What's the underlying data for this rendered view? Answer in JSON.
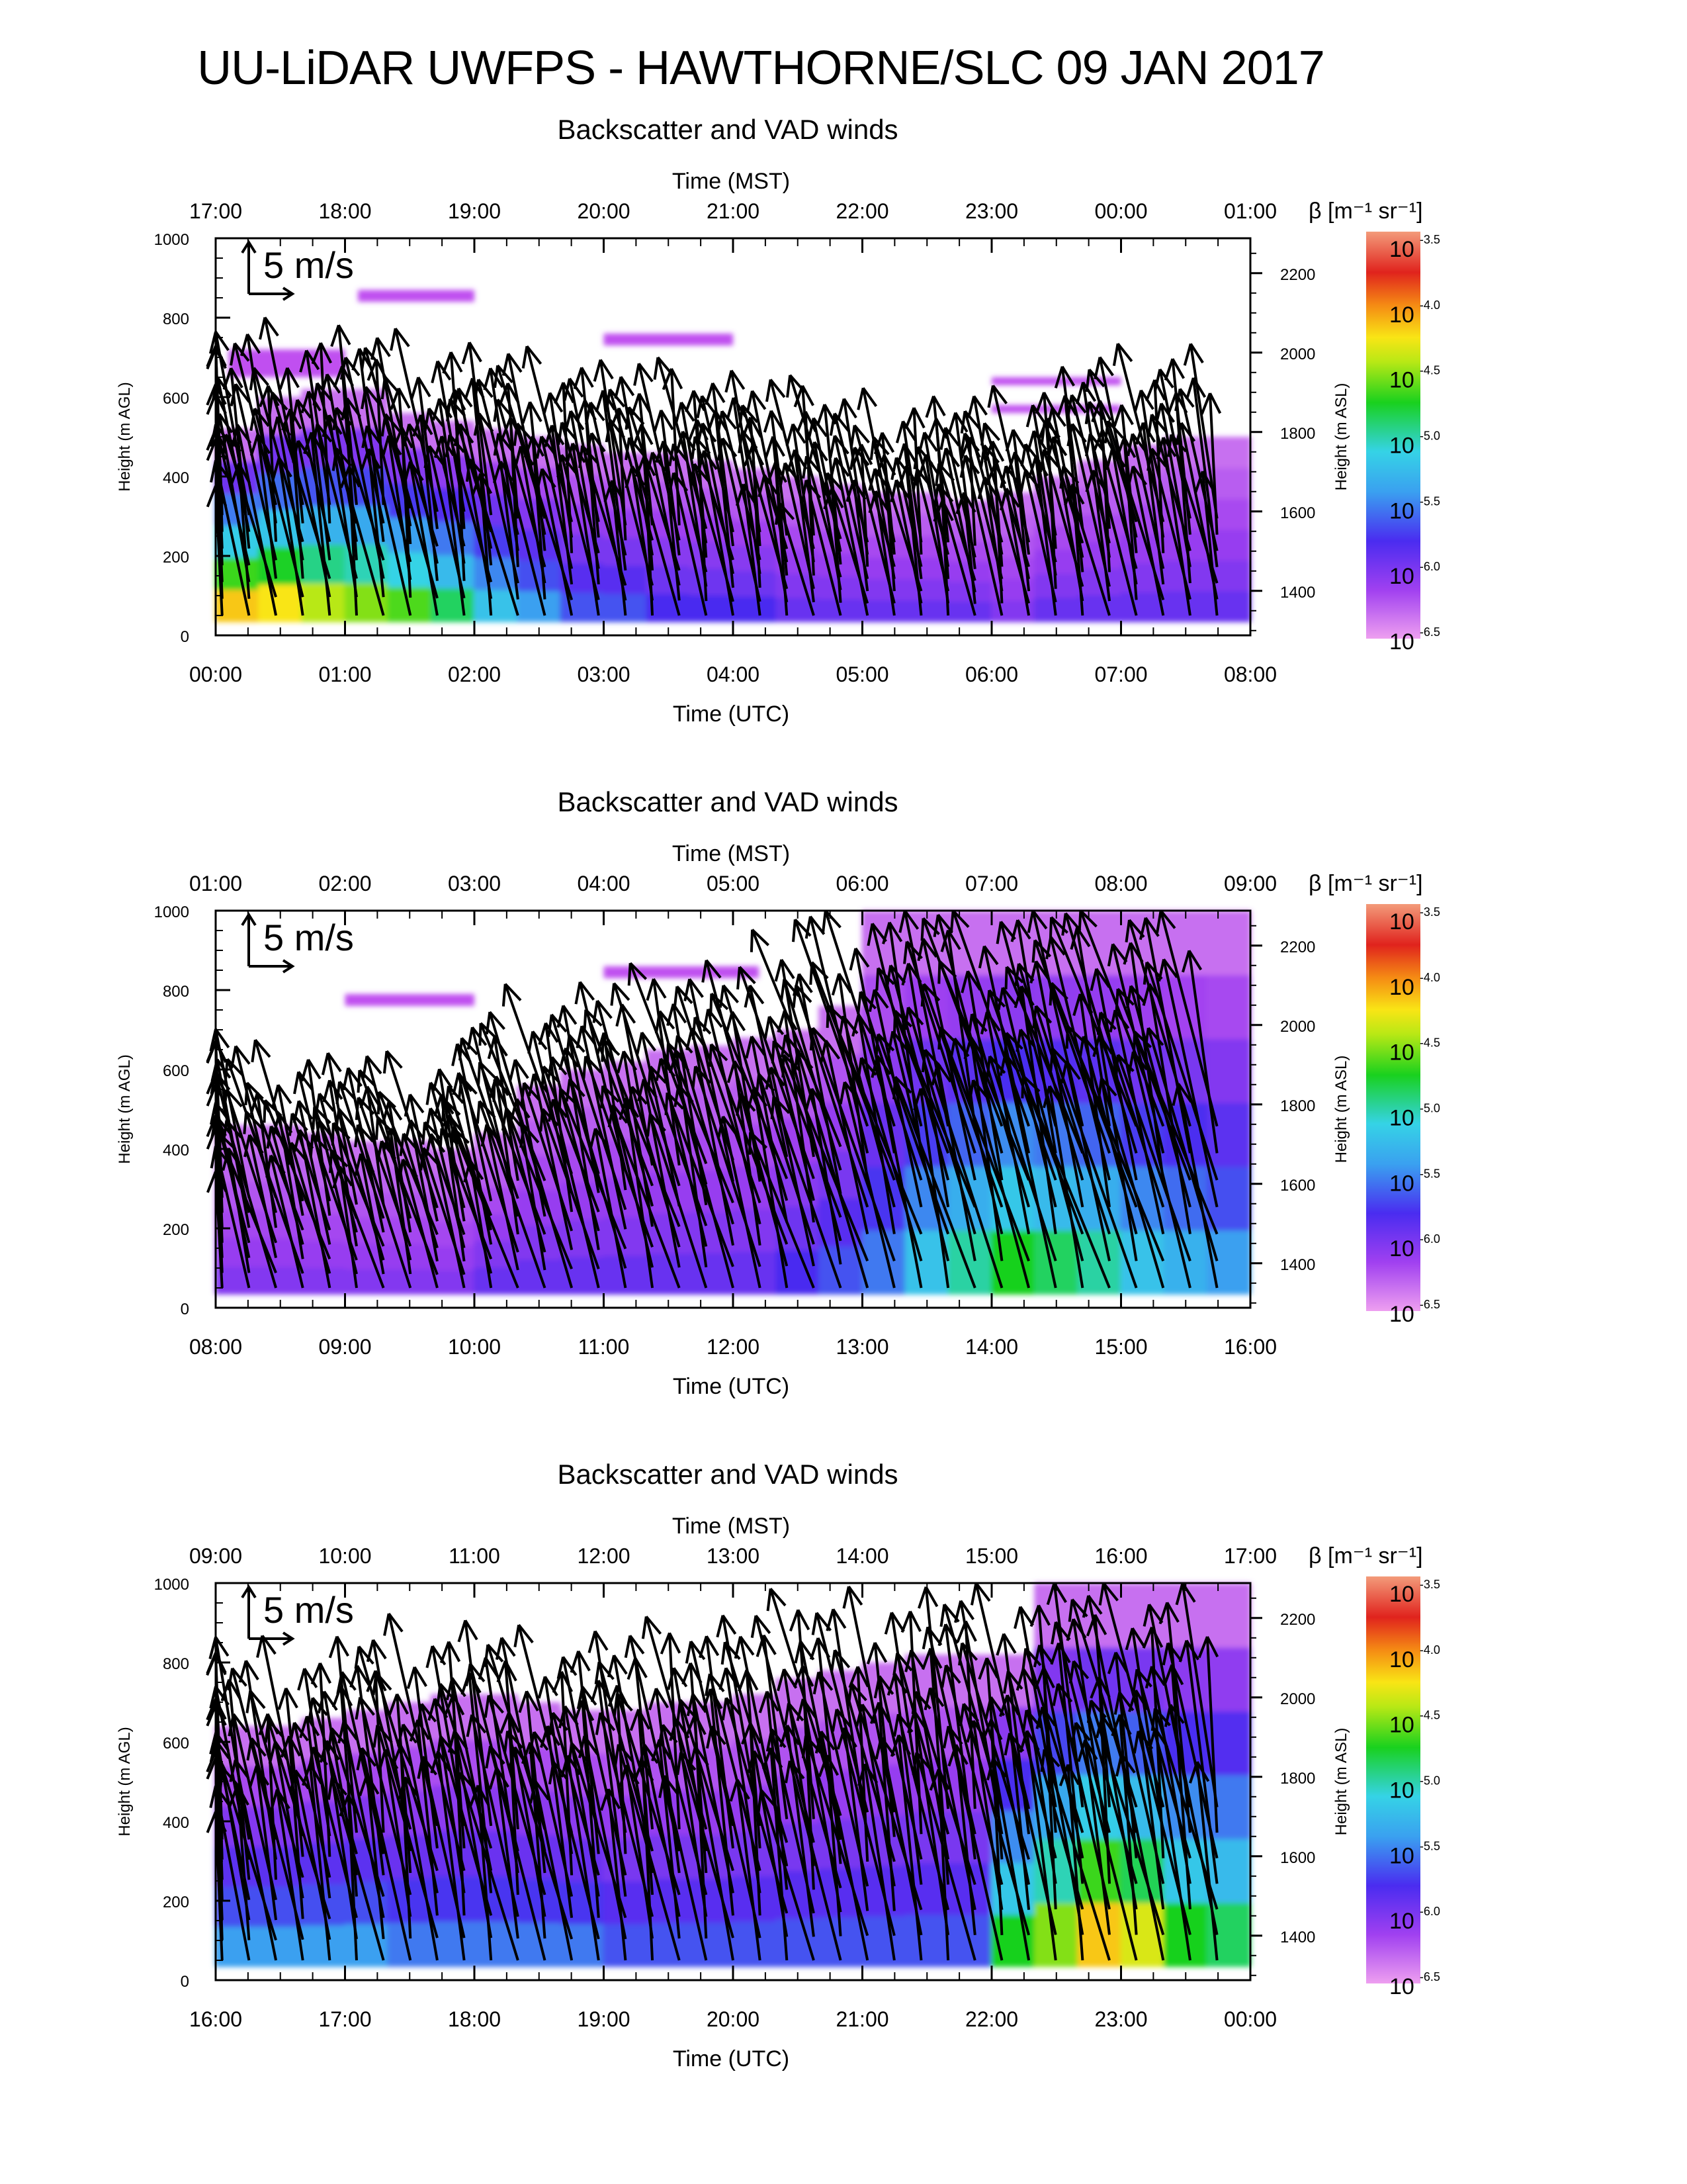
{
  "title": "UU-LiDAR UWFPS - HAWTHORNE/SLC 09 JAN 2017",
  "colorbar": {
    "label": "β [m⁻¹ sr⁻¹]",
    "ticks": [
      {
        "base": "10",
        "exp": "-3.5"
      },
      {
        "base": "10",
        "exp": "-4.0"
      },
      {
        "base": "10",
        "exp": "-4.5"
      },
      {
        "base": "10",
        "exp": "-5.0"
      },
      {
        "base": "10",
        "exp": "-5.5"
      },
      {
        "base": "10",
        "exp": "-6.0"
      },
      {
        "base": "10",
        "exp": "-6.5"
      }
    ],
    "colors": [
      "#f39b7a",
      "#e0231d",
      "#f9e515",
      "#19d11e",
      "#35d3e6",
      "#6a2cf0",
      "#ee9ff0"
    ]
  },
  "reference_arrow": "5 m/s",
  "chart_data": [
    {
      "type": "heatmap",
      "title": "Backscatter and VAD winds",
      "top_axis_label": "Time (MST)",
      "top_ticks": [
        "17:00",
        "18:00",
        "19:00",
        "20:00",
        "21:00",
        "22:00",
        "23:00",
        "00:00",
        "01:00"
      ],
      "xlabel": "Time (UTC)",
      "x_ticks": [
        "00:00",
        "01:00",
        "02:00",
        "03:00",
        "04:00",
        "05:00",
        "06:00",
        "07:00",
        "08:00"
      ],
      "ylabel": "Height (m AGL)",
      "y_ticks": [
        0,
        200,
        400,
        600,
        800,
        1000
      ],
      "ylim": [
        0,
        1000
      ],
      "right_label": "Height (m ASL)",
      "right_ticks": [
        1400,
        1600,
        1800,
        2000,
        2200
      ],
      "arrow_max_height_m": 700,
      "wind_dir_deg": 350,
      "aerosol_top_m": [
        520,
        600,
        620,
        620,
        560,
        540,
        520,
        500,
        480,
        460,
        460,
        440,
        420,
        400,
        380,
        360,
        360,
        340,
        360,
        400,
        440,
        480,
        500,
        500
      ],
      "surface_logbeta": [
        -4.6,
        -4.7,
        -4.9,
        -5.0,
        -5.1,
        -5.3,
        -5.6,
        -5.8,
        -6.0,
        -6.0,
        -6.1,
        -6.1,
        -6.1,
        -6.2,
        -6.2,
        -6.2,
        -6.2,
        -6.2,
        -6.3,
        -6.2,
        -6.2,
        -6.2,
        -6.2,
        -6.2
      ],
      "layers": [
        {
          "t0": 0.1,
          "t1": 1.0,
          "z0": 650,
          "z1": 720
        },
        {
          "t0": 1.1,
          "t1": 2.0,
          "z0": 840,
          "z1": 870
        },
        {
          "t0": 3.0,
          "t1": 4.0,
          "z0": 730,
          "z1": 760
        },
        {
          "t0": 6.0,
          "t1": 7.0,
          "z0": 630,
          "z1": 650
        },
        {
          "t0": 6.0,
          "t1": 7.0,
          "z0": 560,
          "z1": 580
        }
      ]
    },
    {
      "type": "heatmap",
      "title": "Backscatter and VAD winds",
      "top_axis_label": "Time (MST)",
      "top_ticks": [
        "01:00",
        "02:00",
        "03:00",
        "04:00",
        "05:00",
        "06:00",
        "07:00",
        "08:00",
        "09:00"
      ],
      "xlabel": "Time (UTC)",
      "x_ticks": [
        "08:00",
        "09:00",
        "10:00",
        "11:00",
        "12:00",
        "13:00",
        "14:00",
        "15:00",
        "16:00"
      ],
      "ylabel": "Height (m AGL)",
      "y_ticks": [
        0,
        200,
        400,
        600,
        800,
        1000
      ],
      "ylim": [
        0,
        1000
      ],
      "right_label": "Height (m ASL)",
      "right_ticks": [
        1400,
        1600,
        1800,
        2000,
        2200
      ],
      "arrow_max_height_m": 1000,
      "wind_dir_deg": 345,
      "aerosol_top_m": [
        460,
        460,
        440,
        420,
        420,
        400,
        440,
        560,
        600,
        620,
        650,
        660,
        680,
        700,
        760,
        1000,
        1000,
        1000,
        1000,
        1000,
        1000,
        1000,
        1000,
        1000
      ],
      "surface_logbeta": [
        -6.3,
        -6.3,
        -6.3,
        -6.3,
        -6.3,
        -6.3,
        -6.2,
        -6.2,
        -6.2,
        -6.2,
        -6.2,
        -6.2,
        -6.2,
        -6.1,
        -6.0,
        -5.9,
        -5.6,
        -5.4,
        -5.2,
        -5.3,
        -5.4,
        -5.6,
        -5.7,
        -5.8
      ],
      "layers": [
        {
          "t0": 1.0,
          "t1": 2.0,
          "z0": 760,
          "z1": 790
        },
        {
          "t0": 3.0,
          "t1": 4.2,
          "z0": 830,
          "z1": 860
        }
      ]
    },
    {
      "type": "heatmap",
      "title": "Backscatter and VAD winds",
      "top_axis_label": "Time (MST)",
      "top_ticks": [
        "09:00",
        "10:00",
        "11:00",
        "12:00",
        "13:00",
        "14:00",
        "15:00",
        "16:00",
        "17:00"
      ],
      "xlabel": "Time (UTC)",
      "x_ticks": [
        "16:00",
        "17:00",
        "18:00",
        "19:00",
        "20:00",
        "21:00",
        "22:00",
        "23:00",
        "00:00"
      ],
      "ylabel": "Height (m AGL)",
      "y_ticks": [
        0,
        200,
        400,
        600,
        800,
        1000
      ],
      "ylim": [
        0,
        1000
      ],
      "right_label": "Height (m ASL)",
      "right_ticks": [
        1400,
        1600,
        1800,
        2000,
        2200
      ],
      "arrow_max_height_m": 950,
      "wind_dir_deg": 350,
      "aerosol_top_m": [
        640,
        640,
        660,
        680,
        700,
        720,
        720,
        700,
        680,
        680,
        700,
        700,
        720,
        760,
        780,
        800,
        820,
        820,
        820,
        1000,
        1000,
        1000,
        1000,
        1000
      ],
      "surface_logbeta": [
        -5.8,
        -5.8,
        -5.8,
        -5.8,
        -5.9,
        -5.9,
        -5.9,
        -5.9,
        -5.9,
        -6.0,
        -6.0,
        -6.0,
        -6.0,
        -6.0,
        -6.0,
        -6.0,
        -6.0,
        -6.0,
        -5.2,
        -5.0,
        -4.6,
        -4.8,
        -5.2,
        -5.3
      ],
      "layers": []
    }
  ]
}
